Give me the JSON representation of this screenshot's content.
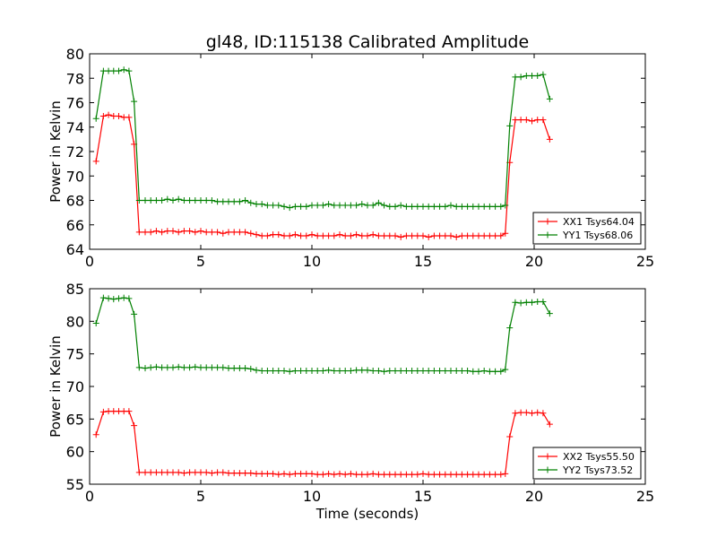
{
  "title": "gl48, ID:115138 Calibrated Amplitude",
  "chart_data": [
    {
      "type": "line",
      "ylabel": "Power in Kelvin",
      "xlabel": "",
      "xlim": [
        0,
        25
      ],
      "ylim": [
        64,
        80
      ],
      "xticks": [
        0,
        5,
        10,
        15,
        20,
        25
      ],
      "yticks": [
        64,
        66,
        68,
        70,
        72,
        74,
        76,
        78,
        80
      ],
      "legend": "lower-right",
      "grid": false,
      "series": [
        {
          "name": "XX1 Tsys64.04",
          "color": "#ff0000",
          "marker": "plus",
          "x": [
            0.29,
            0.62,
            0.85,
            1.08,
            1.31,
            1.54,
            1.77,
            2.0,
            2.23,
            2.5,
            2.75,
            3.0,
            3.25,
            3.5,
            3.75,
            4.0,
            4.25,
            4.5,
            4.75,
            5.0,
            5.25,
            5.5,
            5.75,
            6.0,
            6.25,
            6.5,
            6.75,
            7.0,
            7.25,
            7.5,
            7.75,
            8.0,
            8.25,
            8.5,
            8.75,
            9.0,
            9.25,
            9.5,
            9.75,
            10.0,
            10.25,
            10.5,
            10.75,
            11.0,
            11.25,
            11.5,
            11.75,
            12.0,
            12.25,
            12.5,
            12.75,
            13.0,
            13.25,
            13.5,
            13.75,
            14.0,
            14.25,
            14.5,
            14.75,
            15.0,
            15.25,
            15.5,
            15.75,
            16.0,
            16.25,
            16.5,
            16.75,
            17.0,
            17.25,
            17.5,
            17.75,
            18.0,
            18.25,
            18.5,
            18.7,
            18.9,
            19.15,
            19.4,
            19.65,
            19.9,
            20.15,
            20.4,
            20.7
          ],
          "y": [
            71.2,
            74.9,
            75.0,
            74.9,
            74.9,
            74.8,
            74.8,
            72.6,
            65.4,
            65.4,
            65.4,
            65.5,
            65.4,
            65.5,
            65.5,
            65.4,
            65.5,
            65.5,
            65.4,
            65.5,
            65.4,
            65.4,
            65.4,
            65.3,
            65.4,
            65.4,
            65.4,
            65.4,
            65.3,
            65.2,
            65.1,
            65.1,
            65.2,
            65.2,
            65.1,
            65.1,
            65.2,
            65.1,
            65.1,
            65.2,
            65.1,
            65.1,
            65.1,
            65.1,
            65.2,
            65.1,
            65.1,
            65.2,
            65.1,
            65.1,
            65.2,
            65.1,
            65.1,
            65.1,
            65.1,
            65.0,
            65.1,
            65.1,
            65.1,
            65.1,
            65.0,
            65.1,
            65.1,
            65.1,
            65.1,
            65.0,
            65.1,
            65.1,
            65.1,
            65.1,
            65.1,
            65.1,
            65.1,
            65.1,
            65.3,
            71.1,
            74.6,
            74.6,
            74.6,
            74.5,
            74.6,
            74.6,
            73.0
          ]
        },
        {
          "name": "YY1 Tsys68.06",
          "color": "#008000",
          "marker": "plus",
          "x": [
            0.29,
            0.62,
            0.85,
            1.08,
            1.31,
            1.54,
            1.77,
            2.0,
            2.23,
            2.5,
            2.75,
            3.0,
            3.25,
            3.5,
            3.75,
            4.0,
            4.25,
            4.5,
            4.75,
            5.0,
            5.25,
            5.5,
            5.75,
            6.0,
            6.25,
            6.5,
            6.75,
            7.0,
            7.25,
            7.5,
            7.75,
            8.0,
            8.25,
            8.5,
            8.75,
            9.0,
            9.25,
            9.5,
            9.75,
            10.0,
            10.25,
            10.5,
            10.75,
            11.0,
            11.25,
            11.5,
            11.75,
            12.0,
            12.25,
            12.5,
            12.75,
            13.0,
            13.25,
            13.5,
            13.75,
            14.0,
            14.25,
            14.5,
            14.75,
            15.0,
            15.25,
            15.5,
            15.75,
            16.0,
            16.25,
            16.5,
            16.75,
            17.0,
            17.25,
            17.5,
            17.75,
            18.0,
            18.25,
            18.5,
            18.7,
            18.9,
            19.15,
            19.4,
            19.65,
            19.9,
            20.15,
            20.4,
            20.7
          ],
          "y": [
            74.7,
            78.6,
            78.6,
            78.6,
            78.6,
            78.7,
            78.6,
            76.1,
            68.0,
            68.0,
            68.0,
            68.0,
            68.0,
            68.1,
            68.0,
            68.1,
            68.0,
            68.0,
            68.0,
            68.0,
            68.0,
            68.0,
            67.9,
            67.9,
            67.9,
            67.9,
            67.9,
            68.0,
            67.8,
            67.7,
            67.7,
            67.6,
            67.6,
            67.6,
            67.5,
            67.4,
            67.5,
            67.5,
            67.5,
            67.6,
            67.6,
            67.6,
            67.7,
            67.6,
            67.6,
            67.6,
            67.6,
            67.6,
            67.7,
            67.6,
            67.6,
            67.8,
            67.6,
            67.5,
            67.5,
            67.6,
            67.5,
            67.5,
            67.5,
            67.5,
            67.5,
            67.5,
            67.5,
            67.5,
            67.6,
            67.5,
            67.5,
            67.5,
            67.5,
            67.5,
            67.5,
            67.5,
            67.5,
            67.5,
            67.6,
            74.1,
            78.1,
            78.1,
            78.2,
            78.2,
            78.2,
            78.3,
            76.3
          ]
        }
      ]
    },
    {
      "type": "line",
      "ylabel": "Power in Kelvin",
      "xlabel": "Time (seconds)",
      "xlim": [
        0,
        25
      ],
      "ylim": [
        55,
        85
      ],
      "xticks": [
        0,
        5,
        10,
        15,
        20,
        25
      ],
      "yticks": [
        55,
        60,
        65,
        70,
        75,
        80,
        85
      ],
      "legend": "lower-right",
      "grid": false,
      "series": [
        {
          "name": "XX2 Tsys55.50",
          "color": "#ff0000",
          "marker": "plus",
          "x": [
            0.29,
            0.62,
            0.85,
            1.08,
            1.31,
            1.54,
            1.77,
            2.0,
            2.23,
            2.5,
            2.75,
            3.0,
            3.25,
            3.5,
            3.75,
            4.0,
            4.25,
            4.5,
            4.75,
            5.0,
            5.25,
            5.5,
            5.75,
            6.0,
            6.25,
            6.5,
            6.75,
            7.0,
            7.25,
            7.5,
            7.75,
            8.0,
            8.25,
            8.5,
            8.75,
            9.0,
            9.25,
            9.5,
            9.75,
            10.0,
            10.25,
            10.5,
            10.75,
            11.0,
            11.25,
            11.5,
            11.75,
            12.0,
            12.25,
            12.5,
            12.75,
            13.0,
            13.25,
            13.5,
            13.75,
            14.0,
            14.25,
            14.5,
            14.75,
            15.0,
            15.25,
            15.5,
            15.75,
            16.0,
            16.25,
            16.5,
            16.75,
            17.0,
            17.25,
            17.5,
            17.75,
            18.0,
            18.25,
            18.5,
            18.7,
            18.9,
            19.15,
            19.4,
            19.65,
            19.9,
            20.15,
            20.4,
            20.7
          ],
          "y": [
            62.6,
            66.1,
            66.2,
            66.2,
            66.2,
            66.2,
            66.2,
            64.0,
            56.8,
            56.8,
            56.8,
            56.8,
            56.8,
            56.8,
            56.8,
            56.8,
            56.7,
            56.8,
            56.8,
            56.8,
            56.8,
            56.7,
            56.8,
            56.8,
            56.7,
            56.7,
            56.7,
            56.7,
            56.7,
            56.6,
            56.6,
            56.6,
            56.6,
            56.5,
            56.6,
            56.5,
            56.6,
            56.6,
            56.6,
            56.6,
            56.5,
            56.5,
            56.6,
            56.5,
            56.6,
            56.5,
            56.6,
            56.5,
            56.5,
            56.5,
            56.6,
            56.5,
            56.5,
            56.5,
            56.5,
            56.5,
            56.5,
            56.5,
            56.5,
            56.6,
            56.5,
            56.5,
            56.5,
            56.5,
            56.5,
            56.5,
            56.5,
            56.5,
            56.5,
            56.5,
            56.5,
            56.5,
            56.5,
            56.5,
            56.6,
            62.3,
            65.9,
            66.0,
            66.0,
            65.9,
            66.0,
            65.9,
            64.2
          ]
        },
        {
          "name": "YY2 Tsys73.52",
          "color": "#008000",
          "marker": "plus",
          "x": [
            0.29,
            0.62,
            0.85,
            1.08,
            1.31,
            1.54,
            1.77,
            2.0,
            2.23,
            2.5,
            2.75,
            3.0,
            3.25,
            3.5,
            3.75,
            4.0,
            4.25,
            4.5,
            4.75,
            5.0,
            5.25,
            5.5,
            5.75,
            6.0,
            6.25,
            6.5,
            6.75,
            7.0,
            7.25,
            7.5,
            7.75,
            8.0,
            8.25,
            8.5,
            8.75,
            9.0,
            9.25,
            9.5,
            9.75,
            10.0,
            10.25,
            10.5,
            10.75,
            11.0,
            11.25,
            11.5,
            11.75,
            12.0,
            12.25,
            12.5,
            12.75,
            13.0,
            13.25,
            13.5,
            13.75,
            14.0,
            14.25,
            14.5,
            14.75,
            15.0,
            15.25,
            15.5,
            15.75,
            16.0,
            16.25,
            16.5,
            16.75,
            17.0,
            17.25,
            17.5,
            17.75,
            18.0,
            18.25,
            18.5,
            18.7,
            18.9,
            19.15,
            19.4,
            19.65,
            19.9,
            20.15,
            20.4,
            20.7
          ],
          "y": [
            79.7,
            83.6,
            83.5,
            83.4,
            83.5,
            83.6,
            83.5,
            81.1,
            72.9,
            72.8,
            72.9,
            73.0,
            72.9,
            72.9,
            72.9,
            73.0,
            72.9,
            72.9,
            73.0,
            72.9,
            72.9,
            72.9,
            72.9,
            72.9,
            72.8,
            72.8,
            72.8,
            72.8,
            72.7,
            72.5,
            72.4,
            72.4,
            72.4,
            72.4,
            72.4,
            72.3,
            72.4,
            72.4,
            72.4,
            72.4,
            72.4,
            72.4,
            72.5,
            72.4,
            72.4,
            72.4,
            72.4,
            72.5,
            72.5,
            72.5,
            72.4,
            72.4,
            72.3,
            72.4,
            72.4,
            72.4,
            72.4,
            72.4,
            72.4,
            72.4,
            72.4,
            72.4,
            72.4,
            72.4,
            72.4,
            72.4,
            72.4,
            72.4,
            72.3,
            72.3,
            72.4,
            72.3,
            72.3,
            72.3,
            72.6,
            79.0,
            82.9,
            82.8,
            82.9,
            82.9,
            83.0,
            83.0,
            81.2
          ]
        }
      ]
    }
  ]
}
